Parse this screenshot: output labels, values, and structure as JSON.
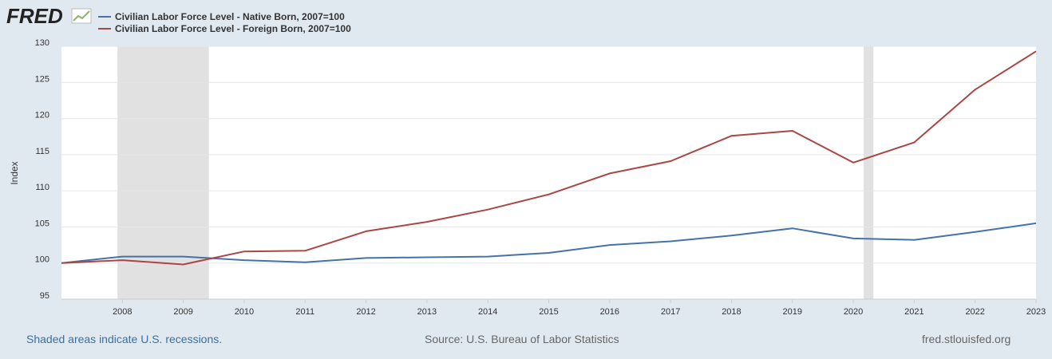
{
  "logo": {
    "text": "FRED",
    "icon": "fred-chart-icon"
  },
  "colors": {
    "native": "#4572a7",
    "foreign": "#aa4643",
    "recession": "#e1e1e1",
    "background": "#e1e9f0"
  },
  "footer": {
    "recession_note": "Shaded areas indicate U.S. recessions.",
    "source": "Source: U.S. Bureau of Labor Statistics",
    "site": "fred.stlouisfed.org"
  },
  "chart_data": {
    "type": "line",
    "ylabel": "Index",
    "ylim": [
      95,
      130
    ],
    "yticks": [
      95,
      100,
      105,
      110,
      115,
      120,
      125,
      130
    ],
    "xlim": [
      2007,
      2023
    ],
    "xticks": [
      2008,
      2009,
      2010,
      2011,
      2012,
      2013,
      2014,
      2015,
      2016,
      2017,
      2018,
      2019,
      2020,
      2021,
      2022,
      2023
    ],
    "grid": true,
    "legend_position": "top-left",
    "x": [
      2007,
      2008,
      2009,
      2010,
      2011,
      2012,
      2013,
      2014,
      2015,
      2016,
      2017,
      2018,
      2019,
      2020,
      2021,
      2022,
      2023
    ],
    "series": [
      {
        "name": "Civilian Labor Force Level - Native Born, 2007=100",
        "color": "#4572a7",
        "values": [
          100.0,
          100.9,
          100.9,
          100.4,
          100.1,
          100.7,
          100.8,
          100.9,
          101.4,
          102.5,
          103.0,
          103.8,
          104.8,
          103.4,
          103.2,
          104.3,
          105.5
        ]
      },
      {
        "name": "Civilian Labor Force Level - Foreign Born, 2007=100",
        "color": "#aa4643",
        "values": [
          100.0,
          100.4,
          99.8,
          101.6,
          101.7,
          104.4,
          105.7,
          107.4,
          109.5,
          112.4,
          114.1,
          117.6,
          118.3,
          113.9,
          116.7,
          124.0,
          129.3
        ]
      }
    ],
    "recessions": [
      [
        2007.92,
        2009.42
      ],
      [
        2020.17,
        2020.33
      ]
    ]
  }
}
